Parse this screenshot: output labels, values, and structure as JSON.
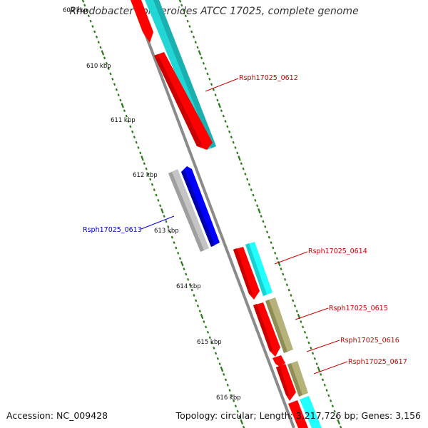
{
  "title": "Rhodobacter sphaeroides ATCC 17025, complete genome",
  "accession_label": "Accession: NC_009428",
  "summary_label": "Topology: circular; Length: 3,217,726 bp; Genes: 3,156",
  "ticks": [
    "609 kbp",
    "610 kbp",
    "611 kbp",
    "612 kbp",
    "613 kbp",
    "614 kbp",
    "615 kbp",
    "616 kbp"
  ],
  "genes": [
    {
      "label": "Rsph17025_0612",
      "strand": "forward",
      "color": "#cc0000"
    },
    {
      "label": "Rsph17025_0613",
      "strand": "reverse",
      "color": "#0000cc"
    },
    {
      "label": "Rsph17025_0614",
      "strand": "forward",
      "color": "#cc0000"
    },
    {
      "label": "Rsph17025_0615",
      "strand": "forward",
      "color": "#cc0000"
    },
    {
      "label": "Rsph17025_0616",
      "strand": "forward",
      "color": "#cc0000"
    },
    {
      "label": "Rsph17025_0617",
      "strand": "forward",
      "color": "#cc0000"
    }
  ],
  "colors": {
    "cds": "#ff0000",
    "cds_reverse": "#0000ff",
    "cyan_feature": "#22d6d6",
    "olive_feature": "#b3b070",
    "gray_feature": "#bdbdbd",
    "tick": "#2a7a1a",
    "backbone": "#808080"
  }
}
